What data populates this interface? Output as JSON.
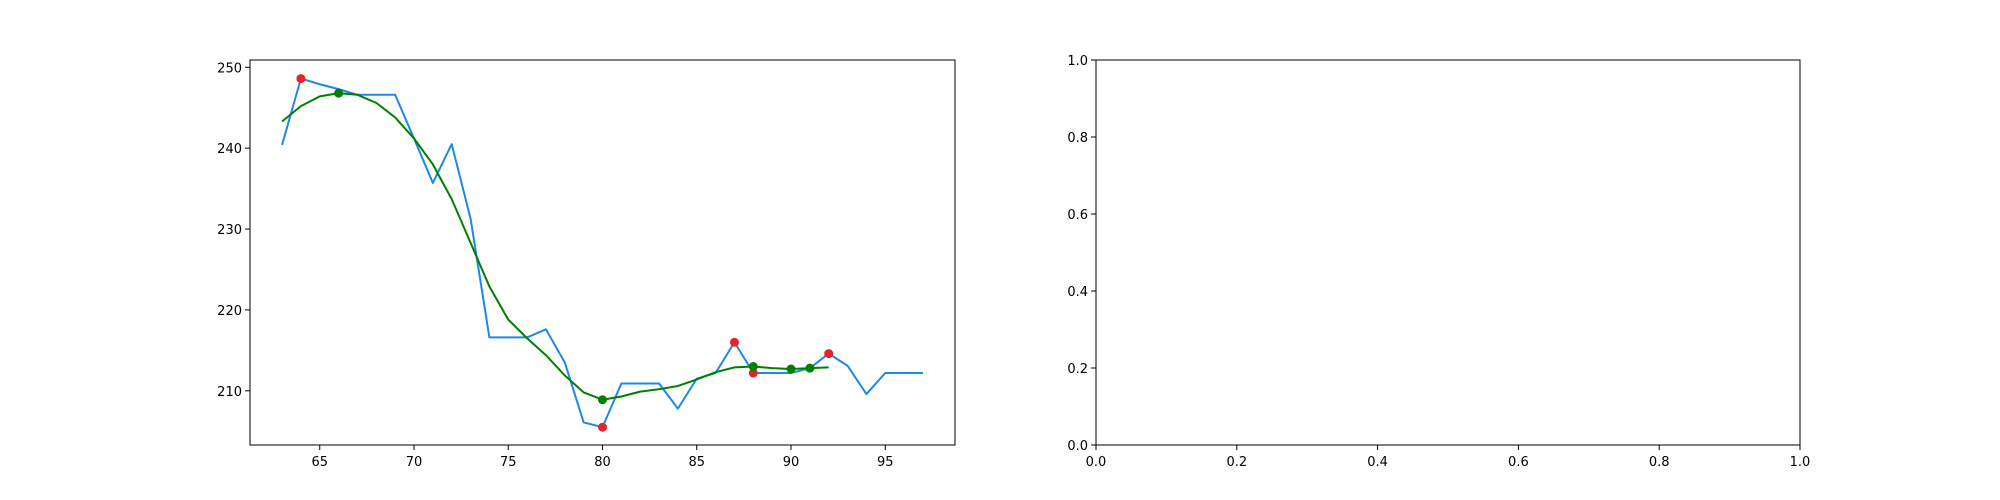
{
  "chart_data": [
    {
      "type": "line",
      "xlim": [
        61.3,
        98.7
      ],
      "ylim": [
        203.3,
        250.9
      ],
      "xticks": [
        65,
        70,
        75,
        80,
        85,
        90,
        95
      ],
      "yticks": [
        210,
        220,
        230,
        240,
        250
      ],
      "xtick_labels": [
        "65",
        "70",
        "75",
        "80",
        "85",
        "90",
        "95"
      ],
      "ytick_labels": [
        "210",
        "220",
        "230",
        "240",
        "250"
      ],
      "grid": false,
      "series": [
        {
          "color": "#1e88e5",
          "x": [
            63,
            64,
            65,
            66,
            67,
            68,
            69,
            70,
            71,
            72,
            73,
            74,
            75,
            76,
            77,
            78,
            79,
            80,
            81,
            82,
            83,
            84,
            85,
            86,
            87,
            88,
            89,
            90,
            91,
            92,
            93,
            94,
            95,
            96,
            97
          ],
          "y": [
            240.4,
            248.6,
            247.9,
            247.3,
            246.6,
            246.6,
            246.6,
            241.2,
            235.7,
            240.5,
            231.3,
            216.6,
            216.6,
            216.6,
            217.6,
            213.5,
            206.1,
            205.5,
            210.9,
            210.9,
            210.9,
            207.8,
            211.5,
            212.2,
            216.0,
            212.2,
            212.2,
            212.2,
            212.8,
            214.6,
            213.1,
            209.6,
            212.2,
            212.2,
            212.2
          ]
        },
        {
          "color": "#007f00",
          "x": [
            63,
            64,
            65,
            66,
            67,
            68,
            69,
            70,
            71,
            72,
            73,
            74,
            75,
            76,
            77,
            78,
            79,
            80,
            81,
            82,
            83,
            84,
            85,
            86,
            87,
            88,
            89,
            90,
            91,
            92
          ],
          "y": [
            243.3,
            245.2,
            246.4,
            246.8,
            246.6,
            245.6,
            243.8,
            241.2,
            238.0,
            233.7,
            228.3,
            222.9,
            218.8,
            216.5,
            214.4,
            211.9,
            209.8,
            208.9,
            209.3,
            209.9,
            210.2,
            210.6,
            211.4,
            212.3,
            212.9,
            213.0,
            212.8,
            212.7,
            212.8,
            212.9
          ]
        }
      ],
      "markers": [
        {
          "color": "#e3242b",
          "points": [
            [
              64,
              248.6
            ],
            [
              80,
              205.5
            ],
            [
              87,
              216.0
            ],
            [
              88,
              212.2
            ],
            [
              92,
              214.6
            ]
          ]
        },
        {
          "color": "#007f00",
          "points": [
            [
              66,
              246.8
            ],
            [
              80,
              208.9
            ],
            [
              88,
              213.0
            ],
            [
              90,
              212.7
            ],
            [
              91,
              212.8
            ]
          ]
        }
      ]
    },
    {
      "type": "line",
      "xlim": [
        0.0,
        1.0
      ],
      "ylim": [
        0.0,
        1.0
      ],
      "xticks": [
        0.0,
        0.2,
        0.4,
        0.6,
        0.8,
        1.0
      ],
      "yticks": [
        0.0,
        0.2,
        0.4,
        0.6,
        0.8,
        1.0
      ],
      "xtick_labels": [
        "0.0",
        "0.2",
        "0.4",
        "0.6",
        "0.8",
        "1.0"
      ],
      "ytick_labels": [
        "0.0",
        "0.2",
        "0.4",
        "0.6",
        "0.8",
        "1.0"
      ],
      "grid": false,
      "series": []
    }
  ]
}
